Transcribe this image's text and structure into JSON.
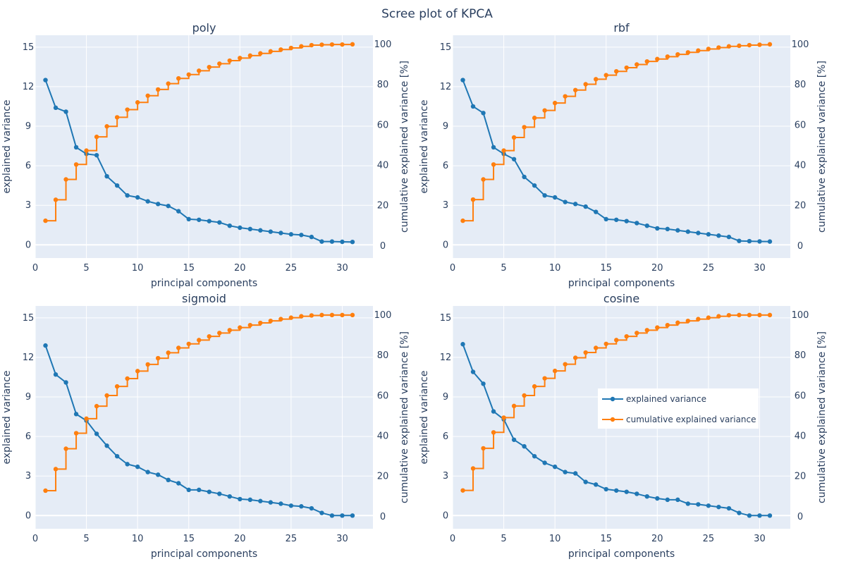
{
  "figure": {
    "title": "Scree plot of KPCA",
    "series_colors": {
      "explained": "#1f77b4",
      "cumulative": "#ff7f0e"
    },
    "plot_bg": "#e5ecf6",
    "grid_color": "#ffffff"
  },
  "legend": {
    "placement": "inside cosine subplot, middle-right",
    "items": [
      "explained variance",
      "cumulative explained variance"
    ]
  },
  "chart_data": [
    {
      "type": "line",
      "title": "poly",
      "xlabel": "principal components",
      "ylabel": "explained variance",
      "y2label": "cumulative explained variance [%]",
      "xlim": [
        0,
        33
      ],
      "ylim": [
        -1,
        15.9
      ],
      "y2lim": [
        -6,
        104.5
      ],
      "xticks": [
        0,
        5,
        10,
        15,
        20,
        25,
        30
      ],
      "yticks": [
        0,
        3,
        6,
        9,
        12,
        15
      ],
      "y2ticks": [
        0,
        20,
        40,
        60,
        80,
        100
      ],
      "x": [
        1,
        2,
        3,
        4,
        5,
        6,
        7,
        8,
        9,
        10,
        11,
        12,
        13,
        14,
        15,
        16,
        17,
        18,
        19,
        20,
        21,
        22,
        23,
        24,
        25,
        26,
        27,
        28,
        29,
        30,
        31
      ],
      "series": [
        {
          "name": "explained variance",
          "axis": "y",
          "shape": "line",
          "values": [
            12.5,
            10.4,
            10.1,
            7.4,
            6.9,
            6.8,
            5.2,
            4.5,
            3.75,
            3.6,
            3.3,
            3.1,
            2.95,
            2.55,
            1.95,
            1.9,
            1.8,
            1.7,
            1.45,
            1.3,
            1.2,
            1.1,
            1.0,
            0.9,
            0.8,
            0.75,
            0.6,
            0.25,
            0.25,
            0.23,
            0.22
          ]
        },
        {
          "name": "cumulative explained variance",
          "axis": "y2",
          "shape": "hv",
          "values": [
            12.5,
            22.9,
            33.0,
            40.4,
            47.3,
            54.1,
            59.3,
            63.8,
            67.6,
            71.2,
            74.5,
            77.6,
            80.5,
            83.1,
            85.0,
            86.9,
            88.7,
            90.4,
            91.9,
            93.2,
            94.4,
            95.5,
            96.5,
            97.4,
            98.2,
            99.0,
            99.6,
            99.8,
            99.9,
            99.9,
            100.0
          ]
        }
      ]
    },
    {
      "type": "line",
      "title": "rbf",
      "xlabel": "principal components",
      "ylabel": "explained variance",
      "y2label": "cumulative explained variance [%]",
      "xlim": [
        0,
        33
      ],
      "ylim": [
        -1,
        15.9
      ],
      "y2lim": [
        -6,
        104.5
      ],
      "xticks": [
        0,
        5,
        10,
        15,
        20,
        25,
        30
      ],
      "yticks": [
        0,
        3,
        6,
        9,
        12,
        15
      ],
      "y2ticks": [
        0,
        20,
        40,
        60,
        80,
        100
      ],
      "x": [
        1,
        2,
        3,
        4,
        5,
        6,
        7,
        8,
        9,
        10,
        11,
        12,
        13,
        14,
        15,
        16,
        17,
        18,
        19,
        20,
        21,
        22,
        23,
        24,
        25,
        26,
        27,
        28,
        29,
        30,
        31
      ],
      "series": [
        {
          "name": "explained variance",
          "axis": "y",
          "shape": "line",
          "values": [
            12.5,
            10.5,
            10.0,
            7.4,
            6.9,
            6.5,
            5.15,
            4.5,
            3.75,
            3.6,
            3.25,
            3.1,
            2.9,
            2.5,
            1.95,
            1.9,
            1.8,
            1.65,
            1.45,
            1.25,
            1.2,
            1.1,
            1.0,
            0.9,
            0.8,
            0.7,
            0.6,
            0.3,
            0.28,
            0.26,
            0.25
          ]
        },
        {
          "name": "cumulative explained variance",
          "axis": "y2",
          "shape": "hv",
          "values": [
            12.5,
            23.0,
            33.0,
            40.4,
            47.3,
            53.8,
            58.9,
            63.5,
            67.2,
            70.9,
            74.2,
            77.3,
            80.2,
            82.7,
            84.7,
            86.6,
            88.4,
            90.0,
            91.5,
            92.7,
            93.9,
            95.0,
            96.0,
            96.9,
            97.7,
            98.4,
            99.0,
            99.3,
            99.6,
            99.8,
            100.0
          ]
        }
      ]
    },
    {
      "type": "line",
      "title": "sigmoid",
      "xlabel": "principal components",
      "ylabel": "explained variance",
      "y2label": "cumulative explained variance [%]",
      "xlim": [
        0,
        33
      ],
      "ylim": [
        -1,
        15.9
      ],
      "y2lim": [
        -6,
        104.5
      ],
      "xticks": [
        0,
        5,
        10,
        15,
        20,
        25,
        30
      ],
      "yticks": [
        0,
        3,
        6,
        9,
        12,
        15
      ],
      "y2ticks": [
        0,
        20,
        40,
        60,
        80,
        100
      ],
      "x": [
        1,
        2,
        3,
        4,
        5,
        6,
        7,
        8,
        9,
        10,
        11,
        12,
        13,
        14,
        15,
        16,
        17,
        18,
        19,
        20,
        21,
        22,
        23,
        24,
        25,
        26,
        27,
        28,
        29,
        30,
        31
      ],
      "series": [
        {
          "name": "explained variance",
          "axis": "y",
          "shape": "line",
          "values": [
            12.9,
            10.7,
            10.1,
            7.7,
            7.2,
            6.2,
            5.3,
            4.5,
            3.9,
            3.7,
            3.3,
            3.1,
            2.7,
            2.45,
            1.95,
            1.95,
            1.8,
            1.65,
            1.45,
            1.25,
            1.2,
            1.1,
            1.0,
            0.9,
            0.75,
            0.7,
            0.55,
            0.2,
            0.0,
            0.0,
            0.0
          ]
        },
        {
          "name": "cumulative explained variance",
          "axis": "y2",
          "shape": "hv",
          "values": [
            12.9,
            23.6,
            33.7,
            41.4,
            48.6,
            54.8,
            60.1,
            64.6,
            68.5,
            72.2,
            75.5,
            78.6,
            81.3,
            83.7,
            85.7,
            87.6,
            89.4,
            91.1,
            92.5,
            93.8,
            95.0,
            96.1,
            97.1,
            98.0,
            98.7,
            99.4,
            99.8,
            100.0,
            100.0,
            100.0,
            100.0
          ]
        }
      ]
    },
    {
      "type": "line",
      "title": "cosine",
      "xlabel": "principal components",
      "ylabel": "explained variance",
      "y2label": "cumulative explained variance [%]",
      "xlim": [
        0,
        33
      ],
      "ylim": [
        -1,
        15.9
      ],
      "y2lim": [
        -6,
        104.5
      ],
      "xticks": [
        0,
        5,
        10,
        15,
        20,
        25,
        30
      ],
      "yticks": [
        0,
        3,
        6,
        9,
        12,
        15
      ],
      "y2ticks": [
        0,
        20,
        40,
        60,
        80,
        100
      ],
      "x": [
        1,
        2,
        3,
        4,
        5,
        6,
        7,
        8,
        9,
        10,
        11,
        12,
        13,
        14,
        15,
        16,
        17,
        18,
        19,
        20,
        21,
        22,
        23,
        24,
        25,
        26,
        27,
        28,
        29,
        30,
        31
      ],
      "series": [
        {
          "name": "explained variance",
          "axis": "y",
          "shape": "line",
          "values": [
            13.0,
            10.9,
            10.0,
            7.9,
            7.3,
            5.75,
            5.25,
            4.5,
            4.0,
            3.7,
            3.3,
            3.2,
            2.55,
            2.35,
            2.0,
            1.9,
            1.8,
            1.65,
            1.45,
            1.3,
            1.2,
            1.2,
            0.9,
            0.85,
            0.75,
            0.65,
            0.55,
            0.2,
            0.0,
            0.0,
            0.0
          ]
        },
        {
          "name": "cumulative explained variance",
          "axis": "y2",
          "shape": "hv",
          "values": [
            13.0,
            23.9,
            33.9,
            41.8,
            49.1,
            54.9,
            60.1,
            64.6,
            68.6,
            72.3,
            75.6,
            78.8,
            81.4,
            83.7,
            85.7,
            87.6,
            89.4,
            91.1,
            92.5,
            93.8,
            95.0,
            96.2,
            97.1,
            98.0,
            98.7,
            99.4,
            99.9,
            100.0,
            100.0,
            100.0,
            100.0
          ]
        }
      ]
    }
  ]
}
